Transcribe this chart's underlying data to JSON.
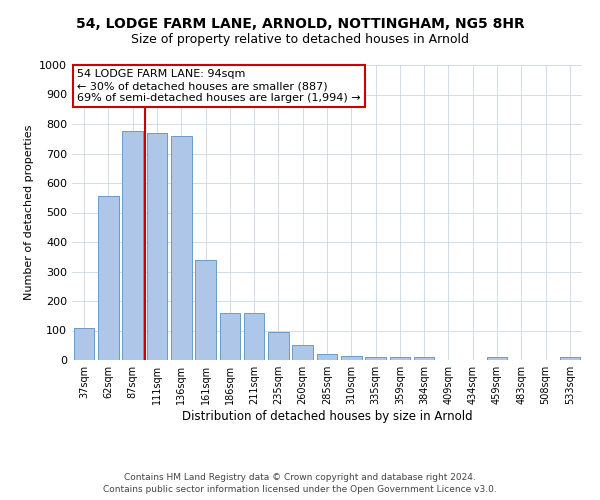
{
  "title1": "54, LODGE FARM LANE, ARNOLD, NOTTINGHAM, NG5 8HR",
  "title2": "Size of property relative to detached houses in Arnold",
  "xlabel": "Distribution of detached houses by size in Arnold",
  "ylabel": "Number of detached properties",
  "footer1": "Contains HM Land Registry data © Crown copyright and database right 2024.",
  "footer2": "Contains public sector information licensed under the Open Government Licence v3.0.",
  "categories": [
    "37sqm",
    "62sqm",
    "87sqm",
    "111sqm",
    "136sqm",
    "161sqm",
    "186sqm",
    "211sqm",
    "235sqm",
    "260sqm",
    "285sqm",
    "310sqm",
    "335sqm",
    "359sqm",
    "384sqm",
    "409sqm",
    "434sqm",
    "459sqm",
    "483sqm",
    "508sqm",
    "533sqm"
  ],
  "values": [
    110,
    555,
    775,
    770,
    760,
    340,
    160,
    160,
    95,
    50,
    20,
    15,
    10,
    10,
    10,
    0,
    0,
    10,
    0,
    0,
    10
  ],
  "bar_color": "#aec6e8",
  "bar_edge_color": "#5a8fc0",
  "vline_x_idx": 2.5,
  "vline_color": "#cc0000",
  "annotation_text": "54 LODGE FARM LANE: 94sqm\n← 30% of detached houses are smaller (887)\n69% of semi-detached houses are larger (1,994) →",
  "annotation_box_color": "#ffffff",
  "annotation_box_edge": "#cc0000",
  "ylim": [
    0,
    1000
  ],
  "yticks": [
    0,
    100,
    200,
    300,
    400,
    500,
    600,
    700,
    800,
    900,
    1000
  ],
  "background_color": "#ffffff",
  "grid_color": "#c8d8e8"
}
